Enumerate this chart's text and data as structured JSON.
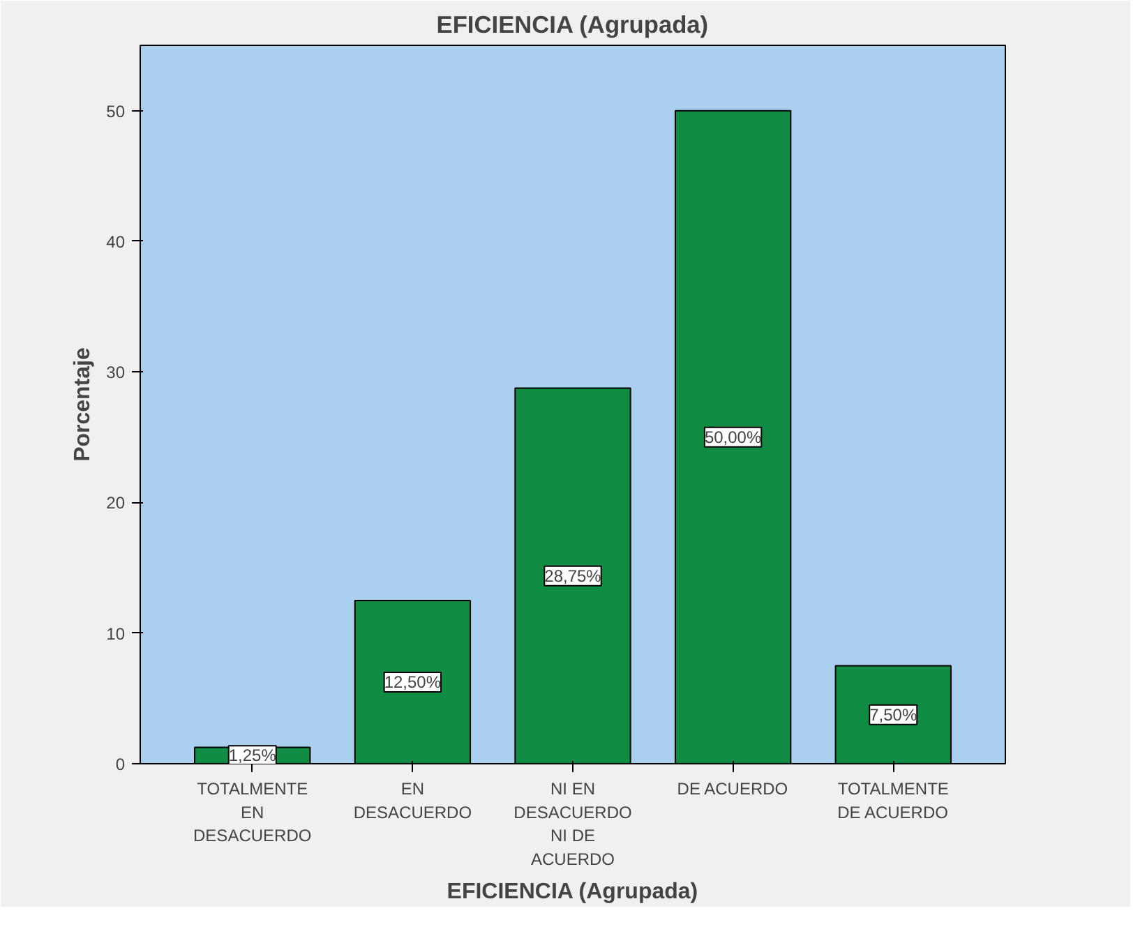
{
  "chart_data": {
    "type": "bar",
    "title": "EFICIENCIA (Agrupada)",
    "xlabel": "EFICIENCIA (Agrupada)",
    "ylabel": "Porcentaje",
    "categories": [
      "TOTALMENTE\nEN\nDESACUERDO",
      "EN\nDESACUERDO",
      "NI EN\nDESACUERDO\nNI DE\nACUERDO",
      "DE ACUERDO",
      "TOTALMENTE\nDE ACUERDO"
    ],
    "values": [
      1.25,
      12.5,
      28.75,
      50,
      7.5
    ],
    "value_labels": [
      "1,25%",
      "12,50%",
      "28,75%",
      "50,00%",
      "7,50%"
    ],
    "color": "#118c44",
    "ylim": [
      0,
      55
    ],
    "yticks": [
      0,
      10,
      20,
      30,
      40,
      50
    ],
    "grid": false
  }
}
